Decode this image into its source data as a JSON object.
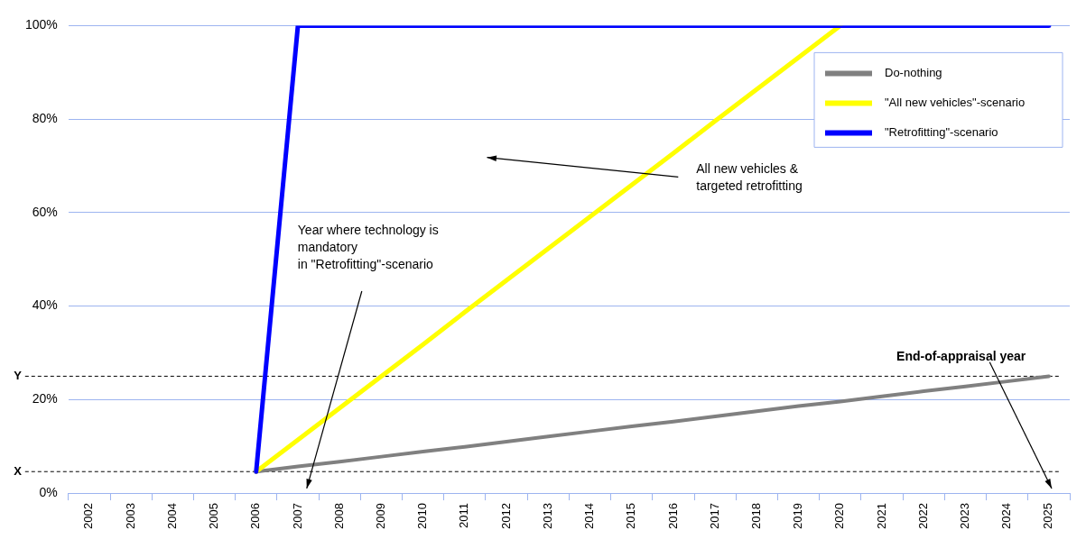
{
  "chart_data": {
    "type": "line",
    "categories": [
      "2002",
      "2003",
      "2004",
      "2005",
      "2006",
      "2007",
      "2008",
      "2009",
      "2010",
      "2011",
      "2012",
      "2013",
      "2014",
      "2015",
      "2016",
      "2017",
      "2018",
      "2019",
      "2020",
      "2021",
      "2022",
      "2023",
      "2024",
      "2025"
    ],
    "series": [
      {
        "name": "Do-nothing",
        "color": "#808080",
        "values": [
          null,
          null,
          null,
          null,
          4.6,
          5.7,
          6.7,
          7.8,
          8.9,
          9.9,
          11.0,
          12.1,
          13.2,
          14.3,
          15.3,
          16.4,
          17.5,
          18.6,
          19.6,
          20.7,
          21.8,
          22.8,
          23.9,
          25
        ]
      },
      {
        "name": "\"All new vehicles\"-scenario",
        "color": "#ffff00",
        "values": [
          null,
          null,
          null,
          null,
          4.6,
          11.4,
          18.2,
          25.0,
          31.8,
          38.7,
          45.5,
          52.3,
          59.1,
          65.9,
          72.7,
          79.6,
          86.4,
          93.2,
          100,
          null,
          null,
          null,
          null,
          null
        ]
      },
      {
        "name": "\"Retrofitting\"-scenario",
        "color": "#0000ff",
        "values": [
          null,
          null,
          null,
          null,
          4.6,
          100,
          100,
          100,
          100,
          100,
          100,
          100,
          100,
          100,
          100,
          100,
          100,
          100,
          100,
          100,
          100,
          100,
          100,
          100
        ]
      }
    ],
    "ylim": [
      0,
      100
    ],
    "yticks": [
      {
        "value": 0,
        "label": "0%"
      },
      {
        "value": 20,
        "label": "20%"
      },
      {
        "value": 40,
        "label": "40%"
      },
      {
        "value": 60,
        "label": "60%"
      },
      {
        "value": 80,
        "label": "80%"
      },
      {
        "value": 100,
        "label": "100%"
      }
    ],
    "grid": "y",
    "legend": "top right",
    "marker": "none",
    "line_style": "solid",
    "ref_lines": [
      {
        "axis": "y",
        "value": 4.6,
        "label": "X",
        "line_style": "dashed",
        "color": "#000000"
      },
      {
        "axis": "y",
        "value": 25,
        "label": "Y",
        "line_style": "dashed",
        "color": "#000000"
      }
    ],
    "annotations": [
      "Year where technology is\nmandatory\nin \"Retrofitting\"-scenario",
      "All new vehicles &\ntargeted retrofitting",
      "End-of-appraisal year"
    ]
  }
}
